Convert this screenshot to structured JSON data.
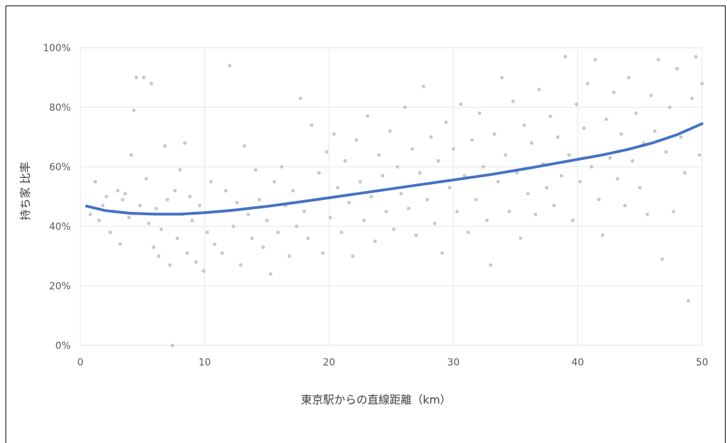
{
  "chart_data": {
    "type": "scatter",
    "title": "",
    "xlabel": "東京駅からの直線距離（km）",
    "ylabel": "持ち家 比率",
    "xlim": [
      0,
      50
    ],
    "ylim": [
      0,
      100
    ],
    "x_ticks": [
      0,
      10,
      20,
      30,
      40,
      50
    ],
    "y_ticks": [
      "0%",
      "20%",
      "40%",
      "60%",
      "80%",
      "100%"
    ],
    "y_tick_values": [
      0,
      20,
      40,
      60,
      80,
      100
    ],
    "grid": true,
    "point_color": "#bfbfbf",
    "trendline": {
      "type": "polynomial",
      "color": "#4472c4",
      "points": [
        [
          0.5,
          46.8
        ],
        [
          2,
          45.3
        ],
        [
          4,
          44.4
        ],
        [
          6,
          44.1
        ],
        [
          8,
          44.1
        ],
        [
          10,
          44.6
        ],
        [
          12,
          45.3
        ],
        [
          15,
          46.7
        ],
        [
          18,
          48.4
        ],
        [
          20,
          49.6
        ],
        [
          22,
          50.8
        ],
        [
          25,
          52.6
        ],
        [
          28,
          54.4
        ],
        [
          30,
          55.6
        ],
        [
          33,
          57.4
        ],
        [
          36,
          59.5
        ],
        [
          38,
          61.0
        ],
        [
          40,
          62.5
        ],
        [
          42,
          64.0
        ],
        [
          44,
          65.8
        ],
        [
          46,
          68.0
        ],
        [
          48,
          70.8
        ],
        [
          50,
          74.5
        ]
      ]
    },
    "series": [
      {
        "points": [
          [
            0.8,
            44
          ],
          [
            1.2,
            55
          ],
          [
            1.5,
            42
          ],
          [
            1.8,
            47
          ],
          [
            2.1,
            50
          ],
          [
            2.4,
            38
          ],
          [
            2.7,
            45
          ],
          [
            3.0,
            52
          ],
          [
            3.2,
            34
          ],
          [
            3.4,
            49
          ],
          [
            3.6,
            51
          ],
          [
            3.9,
            43
          ],
          [
            4.1,
            64
          ],
          [
            4.3,
            79
          ],
          [
            4.5,
            90
          ],
          [
            4.8,
            47
          ],
          [
            5.1,
            90
          ],
          [
            5.3,
            56
          ],
          [
            5.5,
            41
          ],
          [
            5.7,
            88
          ],
          [
            5.9,
            33
          ],
          [
            6.1,
            46
          ],
          [
            6.3,
            30
          ],
          [
            6.5,
            39
          ],
          [
            6.8,
            67
          ],
          [
            7.0,
            49
          ],
          [
            7.2,
            27
          ],
          [
            7.4,
            0
          ],
          [
            7.6,
            52
          ],
          [
            7.8,
            36
          ],
          [
            8.0,
            59
          ],
          [
            8.2,
            44
          ],
          [
            8.4,
            68
          ],
          [
            8.6,
            31
          ],
          [
            8.8,
            50
          ],
          [
            9.0,
            42
          ],
          [
            9.3,
            28
          ],
          [
            9.6,
            47
          ],
          [
            9.9,
            25
          ],
          [
            10.2,
            38
          ],
          [
            10.5,
            55
          ],
          [
            10.8,
            34
          ],
          [
            11.1,
            45
          ],
          [
            11.4,
            31
          ],
          [
            11.7,
            52
          ],
          [
            12.0,
            94
          ],
          [
            12.3,
            40
          ],
          [
            12.6,
            48
          ],
          [
            12.9,
            27
          ],
          [
            13.2,
            67
          ],
          [
            13.5,
            44
          ],
          [
            13.8,
            36
          ],
          [
            14.1,
            59
          ],
          [
            14.4,
            49
          ],
          [
            14.7,
            33
          ],
          [
            15.0,
            42
          ],
          [
            15.3,
            24
          ],
          [
            15.6,
            55
          ],
          [
            15.9,
            38
          ],
          [
            16.2,
            60
          ],
          [
            16.5,
            47
          ],
          [
            16.8,
            30
          ],
          [
            17.1,
            52
          ],
          [
            17.4,
            40
          ],
          [
            17.7,
            83
          ],
          [
            18.0,
            45
          ],
          [
            18.3,
            36
          ],
          [
            18.6,
            74
          ],
          [
            18.9,
            49
          ],
          [
            19.2,
            58
          ],
          [
            19.5,
            31
          ],
          [
            19.8,
            65
          ],
          [
            20.1,
            43
          ],
          [
            20.4,
            71
          ],
          [
            20.7,
            53
          ],
          [
            21.0,
            38
          ],
          [
            21.3,
            62
          ],
          [
            21.6,
            48
          ],
          [
            21.9,
            30
          ],
          [
            22.2,
            69
          ],
          [
            22.5,
            55
          ],
          [
            22.8,
            42
          ],
          [
            23.1,
            77
          ],
          [
            23.4,
            50
          ],
          [
            23.7,
            35
          ],
          [
            24.0,
            64
          ],
          [
            24.3,
            57
          ],
          [
            24.6,
            45
          ],
          [
            24.9,
            72
          ],
          [
            25.2,
            39
          ],
          [
            25.5,
            60
          ],
          [
            25.8,
            51
          ],
          [
            26.1,
            80
          ],
          [
            26.4,
            46
          ],
          [
            26.7,
            66
          ],
          [
            27.0,
            37
          ],
          [
            27.3,
            58
          ],
          [
            27.6,
            87
          ],
          [
            27.9,
            49
          ],
          [
            28.2,
            70
          ],
          [
            28.5,
            41
          ],
          [
            28.8,
            62
          ],
          [
            29.1,
            31
          ],
          [
            29.4,
            75
          ],
          [
            29.7,
            53
          ],
          [
            30.0,
            66
          ],
          [
            30.3,
            45
          ],
          [
            30.6,
            81
          ],
          [
            30.9,
            57
          ],
          [
            31.2,
            38
          ],
          [
            31.5,
            69
          ],
          [
            31.8,
            49
          ],
          [
            32.1,
            78
          ],
          [
            32.4,
            60
          ],
          [
            32.7,
            42
          ],
          [
            33.0,
            27
          ],
          [
            33.3,
            71
          ],
          [
            33.6,
            55
          ],
          [
            33.9,
            90
          ],
          [
            34.2,
            64
          ],
          [
            34.5,
            45
          ],
          [
            34.8,
            82
          ],
          [
            35.1,
            58
          ],
          [
            35.4,
            36
          ],
          [
            35.7,
            74
          ],
          [
            36.0,
            51
          ],
          [
            36.3,
            68
          ],
          [
            36.6,
            44
          ],
          [
            36.9,
            86
          ],
          [
            37.2,
            61
          ],
          [
            37.5,
            53
          ],
          [
            37.8,
            77
          ],
          [
            38.1,
            47
          ],
          [
            38.4,
            70
          ],
          [
            38.7,
            57
          ],
          [
            39.0,
            97
          ],
          [
            39.3,
            64
          ],
          [
            39.6,
            42
          ],
          [
            39.9,
            81
          ],
          [
            40.2,
            55
          ],
          [
            40.5,
            73
          ],
          [
            40.8,
            88
          ],
          [
            41.1,
            60
          ],
          [
            41.4,
            96
          ],
          [
            41.7,
            49
          ],
          [
            42.0,
            37
          ],
          [
            42.3,
            76
          ],
          [
            42.6,
            63
          ],
          [
            42.9,
            85
          ],
          [
            43.2,
            56
          ],
          [
            43.5,
            71
          ],
          [
            43.8,
            47
          ],
          [
            44.1,
            90
          ],
          [
            44.4,
            62
          ],
          [
            44.7,
            78
          ],
          [
            45.0,
            53
          ],
          [
            45.3,
            68
          ],
          [
            45.6,
            44
          ],
          [
            45.9,
            84
          ],
          [
            46.2,
            72
          ],
          [
            46.5,
            96
          ],
          [
            46.8,
            29
          ],
          [
            47.1,
            65
          ],
          [
            47.4,
            80
          ],
          [
            47.7,
            45
          ],
          [
            48.0,
            93
          ],
          [
            48.3,
            70
          ],
          [
            48.6,
            58
          ],
          [
            48.9,
            15
          ],
          [
            49.2,
            83
          ],
          [
            49.5,
            97
          ],
          [
            49.8,
            64
          ],
          [
            50.0,
            88
          ]
        ]
      }
    ]
  }
}
